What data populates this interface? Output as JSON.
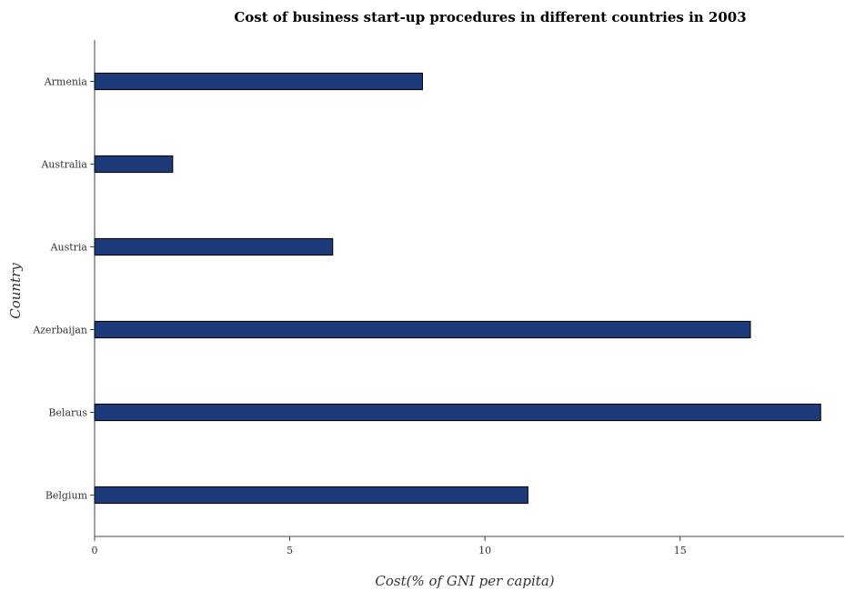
{
  "chart_data": {
    "type": "bar",
    "orientation": "horizontal",
    "title": "Cost of business start-up procedures in different countries in 2003",
    "xlabel": "Cost(% of GNI per capita)",
    "ylabel": "Country",
    "categories": [
      "Armenia",
      "Australia",
      "Austria",
      "Azerbaijan",
      "Belarus",
      "Belgium"
    ],
    "values": [
      8.4,
      2.0,
      6.1,
      16.8,
      18.6,
      11.1
    ],
    "xlim": [
      0,
      19.2
    ],
    "xticks": [
      0,
      5,
      10,
      15
    ],
    "grid": false,
    "legend": "none",
    "bar_color": "#1d3b7a"
  }
}
